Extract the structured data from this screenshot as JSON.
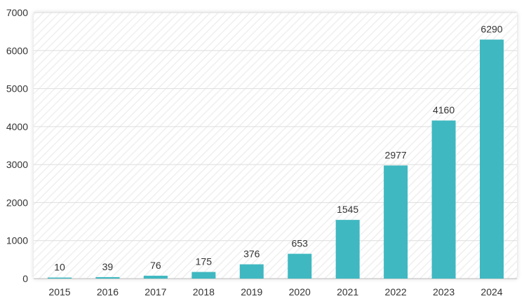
{
  "chart_data": {
    "type": "bar",
    "title": "",
    "xlabel": "",
    "ylabel": "",
    "categories": [
      "2015",
      "2016",
      "2017",
      "2018",
      "2019",
      "2020",
      "2021",
      "2022",
      "2023",
      "2024"
    ],
    "values": [
      10,
      39,
      76,
      175,
      376,
      653,
      1545,
      2977,
      4160,
      6290
    ],
    "data_labels": [
      "10",
      "39",
      "76",
      "175",
      "376",
      "653",
      "1545",
      "2977",
      "4160",
      "6290"
    ],
    "ylim": [
      0,
      7000
    ],
    "yticks": [
      0,
      1000,
      2000,
      3000,
      4000,
      5000,
      6000,
      7000
    ],
    "ytick_labels": [
      "0",
      "1000",
      "2000",
      "3000",
      "4000",
      "5000",
      "6000",
      "7000"
    ],
    "grid": true,
    "legend": "none"
  },
  "colors": {
    "bar": "#3fb8c1",
    "gridline": "#dedede",
    "plot_background": "#ffffff",
    "hatch": "#ececec",
    "text": "#333333",
    "axis": "#bdbdbd"
  }
}
